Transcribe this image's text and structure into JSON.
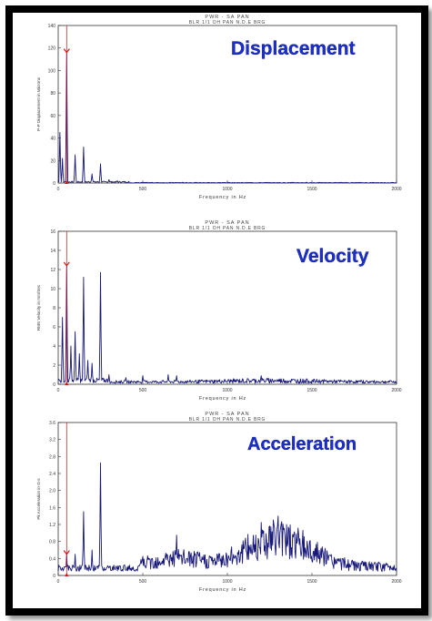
{
  "colors": {
    "series": "#17177a",
    "marker": "#e01010",
    "title": "#1a2fd1",
    "axis": "#333333"
  },
  "chart_data": [
    {
      "type": "line",
      "panel_title": "Displacement",
      "title": "PWR - SA PAN",
      "subtitle": "BLR 1/1 OH PAN N.D.E BRG",
      "xlabel": "Frequency in Hz",
      "ylabel": "P-P Displacement in Microns",
      "xlim": [
        0,
        2000
      ],
      "ylim": [
        0,
        140
      ],
      "xticks": [
        "0",
        "500",
        "1000",
        "1500",
        "2000"
      ],
      "yticks": [
        "0",
        "20",
        "40",
        "60",
        "80",
        "100",
        "120",
        "140"
      ],
      "grid": false,
      "marker_x": 50,
      "peaks": [
        {
          "x": 10,
          "y": 45
        },
        {
          "x": 25,
          "y": 22
        },
        {
          "x": 50,
          "y": 116
        },
        {
          "x": 100,
          "y": 25
        },
        {
          "x": 150,
          "y": 32
        },
        {
          "x": 200,
          "y": 8
        },
        {
          "x": 250,
          "y": 17
        },
        {
          "x": 300,
          "y": 3
        },
        {
          "x": 350,
          "y": 2
        }
      ],
      "noise": 1.2
    },
    {
      "type": "line",
      "panel_title": "Velocity",
      "title": "PWR - SA PAN",
      "subtitle": "BLR 1/1 OH PAN N.D.E BRG",
      "xlabel": "Frequency in Hz",
      "ylabel": "RMS Velocity in mm/Sec",
      "xlim": [
        0,
        2000
      ],
      "ylim": [
        0,
        16
      ],
      "xticks": [
        "0",
        "500",
        "1000",
        "1500",
        "2000"
      ],
      "yticks": [
        "0",
        "2",
        "4",
        "6",
        "8",
        "10",
        "12",
        "14",
        "16"
      ],
      "grid": false,
      "marker_x": 50,
      "peaks": [
        {
          "x": 25,
          "y": 7
        },
        {
          "x": 50,
          "y": 12.4
        },
        {
          "x": 75,
          "y": 4
        },
        {
          "x": 100,
          "y": 5.5
        },
        {
          "x": 125,
          "y": 3.2
        },
        {
          "x": 150,
          "y": 11.2
        },
        {
          "x": 175,
          "y": 2.5
        },
        {
          "x": 200,
          "y": 2.2
        },
        {
          "x": 250,
          "y": 11.7
        },
        {
          "x": 300,
          "y": 1
        },
        {
          "x": 400,
          "y": 0.7
        },
        {
          "x": 500,
          "y": 0.9
        },
        {
          "x": 650,
          "y": 1
        },
        {
          "x": 700,
          "y": 0.9
        },
        {
          "x": 1200,
          "y": 0.9
        }
      ],
      "noise": 0.5
    },
    {
      "type": "line",
      "panel_title": "Acceleration",
      "title": "PWR - SA PAN",
      "subtitle": "BLR 1/1 OH PAN N.D.E BRG",
      "xlabel": "Frequency in Hz",
      "ylabel": "Pk Acceleration in G-s",
      "xlim": [
        0,
        2000
      ],
      "ylim": [
        0,
        3.6
      ],
      "xticks": [
        "0",
        "500",
        "1000",
        "1500",
        "2000"
      ],
      "yticks": [
        "0",
        "0.4",
        "0.8",
        "1.2",
        "1.6",
        "2.0",
        "2.4",
        "2.8",
        "3.2",
        "3.6"
      ],
      "grid": false,
      "marker_x": 50,
      "peaks": [
        {
          "x": 50,
          "y": 0.5
        },
        {
          "x": 100,
          "y": 0.5
        },
        {
          "x": 150,
          "y": 1.5
        },
        {
          "x": 200,
          "y": 0.6
        },
        {
          "x": 250,
          "y": 2.65
        },
        {
          "x": 500,
          "y": 0.45
        },
        {
          "x": 700,
          "y": 0.95
        },
        {
          "x": 1200,
          "y": 1.25
        },
        {
          "x": 1300,
          "y": 1.4
        },
        {
          "x": 1350,
          "y": 1.2
        }
      ],
      "noise": 0.35
    }
  ]
}
